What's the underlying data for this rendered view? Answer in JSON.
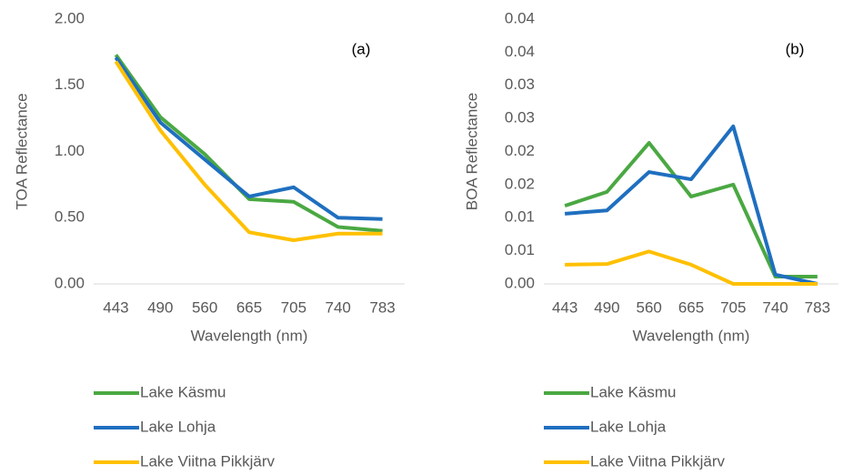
{
  "chart_data": [
    {
      "type": "line",
      "annotation": "(a)",
      "x_label": "Wavelength (nm)",
      "y_label": "TOA Reflectance",
      "categories": [
        "443",
        "490",
        "560",
        "665",
        "705",
        "740",
        "783"
      ],
      "ylim": [
        0,
        2
      ],
      "yticks": [
        {
          "value": 0,
          "label": "0.00"
        },
        {
          "value": 0.5,
          "label": "0.50"
        },
        {
          "value": 1,
          "label": "1.00"
        },
        {
          "value": 1.5,
          "label": "1.50"
        },
        {
          "value": 2,
          "label": "2.00"
        }
      ],
      "grid": false,
      "series": [
        {
          "name": "Lake Käsmu",
          "color": "#4aa842",
          "values": [
            1.73,
            1.26,
            0.98,
            0.64,
            0.62,
            0.43,
            0.4
          ]
        },
        {
          "name": "Lake Lohja",
          "color": "#1f6fbf",
          "values": [
            1.71,
            1.22,
            0.94,
            0.66,
            0.73,
            0.5,
            0.49
          ]
        },
        {
          "name": "Lake Viitna Pikkjärv",
          "color": "#ffc000",
          "values": [
            1.68,
            1.16,
            0.75,
            0.39,
            0.33,
            0.38,
            0.38
          ]
        }
      ]
    },
    {
      "type": "line",
      "annotation": "(b)",
      "x_label": "Wavelength (nm)",
      "y_label": "BOA Reflectance",
      "categories": [
        "443",
        "490",
        "560",
        "665",
        "705",
        "740",
        "783"
      ],
      "ylim": [
        0,
        0.04
      ],
      "yticks": [
        {
          "value": 0,
          "label": "0.00"
        },
        {
          "value": 0.005,
          "label": "0.01"
        },
        {
          "value": 0.01,
          "label": "0.01"
        },
        {
          "value": 0.015,
          "label": "0.02"
        },
        {
          "value": 0.02,
          "label": "0.02"
        },
        {
          "value": 0.025,
          "label": "0.03"
        },
        {
          "value": 0.03,
          "label": "0.03"
        },
        {
          "value": 0.035,
          "label": "0.04"
        },
        {
          "value": 0.04,
          "label": "0.04"
        }
      ],
      "grid": false,
      "series": [
        {
          "name": "Lake Käsmu",
          "color": "#4aa842",
          "values": [
            0.0118,
            0.0139,
            0.0213,
            0.0132,
            0.015,
            0.0011,
            0.0011
          ]
        },
        {
          "name": "Lake Lohja",
          "color": "#1f6fbf",
          "values": [
            0.0106,
            0.0111,
            0.0169,
            0.0158,
            0.0238,
            0.0014,
            0
          ]
        },
        {
          "name": "Lake Viitna Pikkjärv",
          "color": "#ffc000",
          "values": [
            0.0029,
            0.003,
            0.0049,
            0.0029,
            0,
            0,
            0
          ]
        }
      ]
    }
  ]
}
